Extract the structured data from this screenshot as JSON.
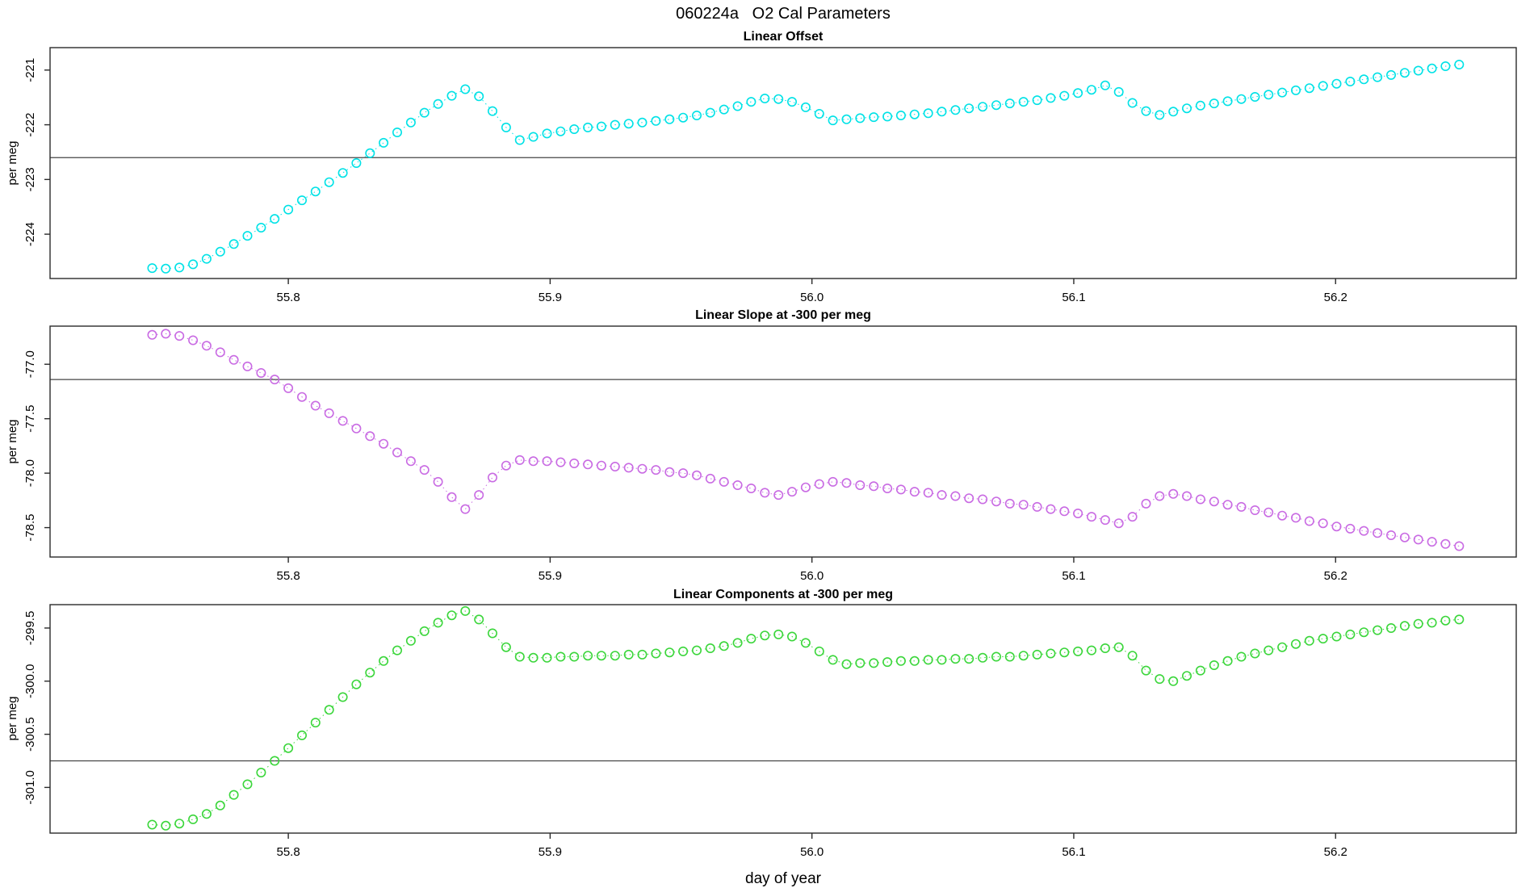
{
  "title": "060224a   O2 Cal Parameters",
  "xlabel": "day of year",
  "chart_data": [
    {
      "id": "linear-offset",
      "type": "scatter",
      "title": "Linear Offset",
      "ylabel": "per meg",
      "xlabel": "day of year",
      "marker": "open-circle",
      "line_style": "dotted",
      "color": "#00E2E6",
      "xlim": [
        55.709,
        56.269
      ],
      "ylim": [
        -224.81,
        -220.59
      ],
      "ref_line": -222.6,
      "xticks": [
        {
          "v": 55.8,
          "label": "55.8"
        },
        {
          "v": 55.9,
          "label": "55.9"
        },
        {
          "v": 56.0,
          "label": "56.0"
        },
        {
          "v": 56.1,
          "label": "56.1"
        },
        {
          "v": 56.2,
          "label": "56.2"
        }
      ],
      "yticks": [
        {
          "v": -221,
          "label": "-221"
        },
        {
          "v": -222,
          "label": "-222"
        },
        {
          "v": -223,
          "label": "-223"
        },
        {
          "v": -224,
          "label": "-224"
        }
      ],
      "x": [
        55.748,
        55.7532,
        55.7584,
        55.7636,
        55.7688,
        55.774,
        55.7792,
        55.7844,
        55.7896,
        55.7948,
        55.8,
        55.8052,
        55.8104,
        55.8156,
        55.8208,
        55.826,
        55.8312,
        55.8364,
        55.8416,
        55.8468,
        55.852,
        55.8572,
        55.8624,
        55.8676,
        55.8728,
        55.878,
        55.8832,
        55.8884,
        55.8936,
        55.8988,
        55.904,
        55.9092,
        55.9144,
        55.9196,
        55.9248,
        55.93,
        55.9352,
        55.9404,
        55.9456,
        55.9508,
        55.956,
        55.9612,
        55.9664,
        55.9716,
        55.9768,
        55.982,
        55.9872,
        55.9924,
        55.9976,
        56.0028,
        56.008,
        56.0132,
        56.0184,
        56.0236,
        56.0288,
        56.034,
        56.0392,
        56.0444,
        56.0496,
        56.0548,
        56.06,
        56.0652,
        56.0704,
        56.0756,
        56.0808,
        56.086,
        56.0912,
        56.0964,
        56.1016,
        56.1068,
        56.112,
        56.1172,
        56.1224,
        56.1276,
        56.1328,
        56.138,
        56.1432,
        56.1484,
        56.1536,
        56.1588,
        56.164,
        56.1692,
        56.1744,
        56.1796,
        56.1848,
        56.19,
        56.1952,
        56.2004,
        56.2056,
        56.2108,
        56.216,
        56.2212,
        56.2264,
        56.2316,
        56.2368,
        56.242,
        56.2472
      ],
      "y": [
        -224.62,
        -224.63,
        -224.61,
        -224.55,
        -224.45,
        -224.32,
        -224.18,
        -224.03,
        -223.88,
        -223.72,
        -223.55,
        -223.38,
        -223.22,
        -223.05,
        -222.88,
        -222.7,
        -222.52,
        -222.33,
        -222.14,
        -221.96,
        -221.78,
        -221.62,
        -221.47,
        -221.35,
        -221.48,
        -221.75,
        -222.05,
        -222.28,
        -222.22,
        -222.16,
        -222.12,
        -222.08,
        -222.05,
        -222.03,
        -222.0,
        -221.98,
        -221.96,
        -221.93,
        -221.9,
        -221.87,
        -221.83,
        -221.78,
        -221.72,
        -221.66,
        -221.58,
        -221.52,
        -221.53,
        -221.58,
        -221.68,
        -221.8,
        -221.92,
        -221.9,
        -221.88,
        -221.86,
        -221.85,
        -221.83,
        -221.81,
        -221.79,
        -221.76,
        -221.73,
        -221.7,
        -221.67,
        -221.64,
        -221.61,
        -221.58,
        -221.55,
        -221.51,
        -221.47,
        -221.42,
        -221.36,
        -221.28,
        -221.4,
        -221.6,
        -221.75,
        -221.82,
        -221.76,
        -221.7,
        -221.65,
        -221.61,
        -221.57,
        -221.53,
        -221.49,
        -221.45,
        -221.41,
        -221.37,
        -221.33,
        -221.29,
        -221.25,
        -221.21,
        -221.17,
        -221.13,
        -221.09,
        -221.05,
        -221.01,
        -220.97,
        -220.93,
        -220.9
      ]
    },
    {
      "id": "linear-slope",
      "type": "scatter",
      "title": "Linear Slope at -300 per meg",
      "ylabel": "per meg",
      "xlabel": "day of year",
      "marker": "open-circle",
      "line_style": "dotted",
      "color": "#C96BE3",
      "xlim": [
        55.709,
        56.269
      ],
      "ylim": [
        -78.77,
        -76.65
      ],
      "ref_line": -77.14,
      "xticks": [
        {
          "v": 55.8,
          "label": "55.8"
        },
        {
          "v": 55.9,
          "label": "55.9"
        },
        {
          "v": 56.0,
          "label": "56.0"
        },
        {
          "v": 56.1,
          "label": "56.1"
        },
        {
          "v": 56.2,
          "label": "56.2"
        }
      ],
      "yticks": [
        {
          "v": -77.0,
          "label": "-77.0"
        },
        {
          "v": -77.5,
          "label": "-77.5"
        },
        {
          "v": -78.0,
          "label": "-78.0"
        },
        {
          "v": -78.5,
          "label": "-78.5"
        }
      ],
      "x": [
        55.748,
        55.7532,
        55.7584,
        55.7636,
        55.7688,
        55.774,
        55.7792,
        55.7844,
        55.7896,
        55.7948,
        55.8,
        55.8052,
        55.8104,
        55.8156,
        55.8208,
        55.826,
        55.8312,
        55.8364,
        55.8416,
        55.8468,
        55.852,
        55.8572,
        55.8624,
        55.8676,
        55.8728,
        55.878,
        55.8832,
        55.8884,
        55.8936,
        55.8988,
        55.904,
        55.9092,
        55.9144,
        55.9196,
        55.9248,
        55.93,
        55.9352,
        55.9404,
        55.9456,
        55.9508,
        55.956,
        55.9612,
        55.9664,
        55.9716,
        55.9768,
        55.982,
        55.9872,
        55.9924,
        55.9976,
        56.0028,
        56.008,
        56.0132,
        56.0184,
        56.0236,
        56.0288,
        56.034,
        56.0392,
        56.0444,
        56.0496,
        56.0548,
        56.06,
        56.0652,
        56.0704,
        56.0756,
        56.0808,
        56.086,
        56.0912,
        56.0964,
        56.1016,
        56.1068,
        56.112,
        56.1172,
        56.1224,
        56.1276,
        56.1328,
        56.138,
        56.1432,
        56.1484,
        56.1536,
        56.1588,
        56.164,
        56.1692,
        56.1744,
        56.1796,
        56.1848,
        56.19,
        56.1952,
        56.2004,
        56.2056,
        56.2108,
        56.216,
        56.2212,
        56.2264,
        56.2316,
        56.2368,
        56.242,
        56.2472
      ],
      "y": [
        -76.73,
        -76.72,
        -76.74,
        -76.78,
        -76.83,
        -76.89,
        -76.96,
        -77.02,
        -77.08,
        -77.14,
        -77.22,
        -77.3,
        -77.38,
        -77.45,
        -77.52,
        -77.59,
        -77.66,
        -77.73,
        -77.81,
        -77.89,
        -77.97,
        -78.08,
        -78.22,
        -78.33,
        -78.2,
        -78.04,
        -77.93,
        -77.88,
        -77.89,
        -77.89,
        -77.9,
        -77.91,
        -77.92,
        -77.93,
        -77.94,
        -77.95,
        -77.96,
        -77.97,
        -77.99,
        -78.0,
        -78.02,
        -78.05,
        -78.08,
        -78.11,
        -78.14,
        -78.18,
        -78.2,
        -78.17,
        -78.13,
        -78.1,
        -78.08,
        -78.09,
        -78.11,
        -78.12,
        -78.14,
        -78.15,
        -78.17,
        -78.18,
        -78.2,
        -78.21,
        -78.23,
        -78.24,
        -78.26,
        -78.28,
        -78.29,
        -78.31,
        -78.33,
        -78.35,
        -78.37,
        -78.4,
        -78.43,
        -78.46,
        -78.4,
        -78.28,
        -78.21,
        -78.19,
        -78.21,
        -78.24,
        -78.26,
        -78.29,
        -78.31,
        -78.34,
        -78.36,
        -78.39,
        -78.41,
        -78.44,
        -78.46,
        -78.49,
        -78.51,
        -78.53,
        -78.55,
        -78.57,
        -78.59,
        -78.61,
        -78.63,
        -78.65,
        -78.67
      ]
    },
    {
      "id": "linear-components",
      "type": "scatter",
      "title": "Linear Components at -300 per meg",
      "ylabel": "per meg",
      "xlabel": "day of year",
      "marker": "open-circle",
      "line_style": "dotted",
      "color": "#3BD63B",
      "xlim": [
        55.709,
        56.269
      ],
      "ylim": [
        -301.43,
        -299.28
      ],
      "ref_line": -300.75,
      "xticks": [
        {
          "v": 55.8,
          "label": "55.8"
        },
        {
          "v": 55.9,
          "label": "55.9"
        },
        {
          "v": 56.0,
          "label": "56.0"
        },
        {
          "v": 56.1,
          "label": "56.1"
        },
        {
          "v": 56.2,
          "label": "56.2"
        }
      ],
      "yticks": [
        {
          "v": -299.5,
          "label": "-299.5"
        },
        {
          "v": -300.0,
          "label": "-300.0"
        },
        {
          "v": -300.5,
          "label": "-300.5"
        },
        {
          "v": -301.0,
          "label": "-301.0"
        }
      ],
      "x": [
        55.748,
        55.7532,
        55.7584,
        55.7636,
        55.7688,
        55.774,
        55.7792,
        55.7844,
        55.7896,
        55.7948,
        55.8,
        55.8052,
        55.8104,
        55.8156,
        55.8208,
        55.826,
        55.8312,
        55.8364,
        55.8416,
        55.8468,
        55.852,
        55.8572,
        55.8624,
        55.8676,
        55.8728,
        55.878,
        55.8832,
        55.8884,
        55.8936,
        55.8988,
        55.904,
        55.9092,
        55.9144,
        55.9196,
        55.9248,
        55.93,
        55.9352,
        55.9404,
        55.9456,
        55.9508,
        55.956,
        55.9612,
        55.9664,
        55.9716,
        55.9768,
        55.982,
        55.9872,
        55.9924,
        55.9976,
        56.0028,
        56.008,
        56.0132,
        56.0184,
        56.0236,
        56.0288,
        56.034,
        56.0392,
        56.0444,
        56.0496,
        56.0548,
        56.06,
        56.0652,
        56.0704,
        56.0756,
        56.0808,
        56.086,
        56.0912,
        56.0964,
        56.1016,
        56.1068,
        56.112,
        56.1172,
        56.1224,
        56.1276,
        56.1328,
        56.138,
        56.1432,
        56.1484,
        56.1536,
        56.1588,
        56.164,
        56.1692,
        56.1744,
        56.1796,
        56.1848,
        56.19,
        56.1952,
        56.2004,
        56.2056,
        56.2108,
        56.216,
        56.2212,
        56.2264,
        56.2316,
        56.2368,
        56.242,
        56.2472
      ],
      "y": [
        -301.35,
        -301.36,
        -301.34,
        -301.3,
        -301.25,
        -301.17,
        -301.07,
        -300.97,
        -300.86,
        -300.75,
        -300.63,
        -300.51,
        -300.39,
        -300.27,
        -300.15,
        -300.03,
        -299.92,
        -299.81,
        -299.71,
        -299.62,
        -299.53,
        -299.45,
        -299.38,
        -299.34,
        -299.42,
        -299.55,
        -299.68,
        -299.77,
        -299.78,
        -299.78,
        -299.77,
        -299.77,
        -299.76,
        -299.76,
        -299.76,
        -299.75,
        -299.75,
        -299.74,
        -299.73,
        -299.72,
        -299.71,
        -299.69,
        -299.67,
        -299.64,
        -299.6,
        -299.57,
        -299.56,
        -299.58,
        -299.64,
        -299.72,
        -299.8,
        -299.84,
        -299.83,
        -299.83,
        -299.82,
        -299.81,
        -299.81,
        -299.8,
        -299.8,
        -299.79,
        -299.79,
        -299.78,
        -299.77,
        -299.77,
        -299.76,
        -299.75,
        -299.74,
        -299.73,
        -299.72,
        -299.71,
        -299.69,
        -299.68,
        -299.76,
        -299.9,
        -299.98,
        -300.0,
        -299.95,
        -299.9,
        -299.85,
        -299.81,
        -299.77,
        -299.74,
        -299.71,
        -299.68,
        -299.65,
        -299.62,
        -299.6,
        -299.58,
        -299.56,
        -299.54,
        -299.52,
        -299.5,
        -299.48,
        -299.46,
        -299.45,
        -299.43,
        -299.42
      ]
    }
  ]
}
